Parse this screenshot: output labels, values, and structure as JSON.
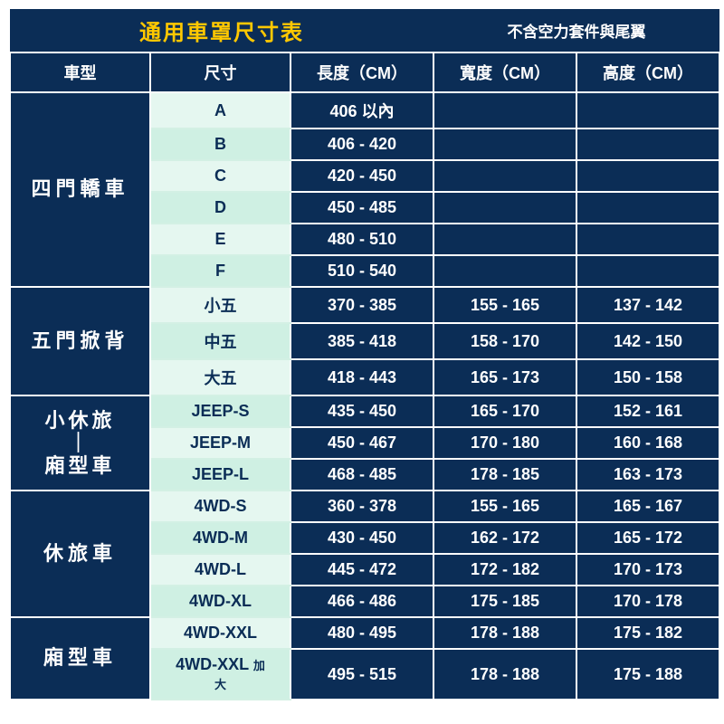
{
  "title": "通用車罩尺寸表",
  "note": "不含空力套件與尾翼",
  "columns": [
    "車型",
    "尺寸",
    "長度（CM）",
    "寬度（CM）",
    "高度（CM）"
  ],
  "alt_colors": [
    "#e5f7f0",
    "#cff0e3"
  ],
  "groups": [
    {
      "category": "四門轎車",
      "rows": [
        {
          "size": "A",
          "len": "406 以內",
          "w": "",
          "h": ""
        },
        {
          "size": "B",
          "len": "406 - 420",
          "w": "",
          "h": ""
        },
        {
          "size": "C",
          "len": "420 - 450",
          "w": "",
          "h": ""
        },
        {
          "size": "D",
          "len": "450 - 485",
          "w": "",
          "h": ""
        },
        {
          "size": "E",
          "len": "480 - 510",
          "w": "",
          "h": ""
        },
        {
          "size": "F",
          "len": "510 - 540",
          "w": "",
          "h": ""
        }
      ]
    },
    {
      "category": "五門掀背",
      "rows": [
        {
          "size": "小五",
          "len": "370 - 385",
          "w": "155 - 165",
          "h": "137 - 142"
        },
        {
          "size": "中五",
          "len": "385 - 418",
          "w": "158 - 170",
          "h": "142 - 150"
        },
        {
          "size": "大五",
          "len": "418 - 443",
          "w": "165 - 173",
          "h": "150 - 158"
        }
      ]
    },
    {
      "category": "小休旅｜廂型車",
      "category_html": "<span class='stack'>小休旅</span><span class='stack'>｜</span><span class='stack'>廂型車</span>",
      "rows": [
        {
          "size": "JEEP-S",
          "len": "435 - 450",
          "w": "165 - 170",
          "h": "152 - 161"
        },
        {
          "size": "JEEP-M",
          "len": "450 - 467",
          "w": "170 - 180",
          "h": "160 - 168"
        },
        {
          "size": "JEEP-L",
          "len": "468 - 485",
          "w": "178 - 185",
          "h": "163 - 173"
        }
      ]
    },
    {
      "category": "休旅車",
      "rows": [
        {
          "size": "4WD-S",
          "len": "360 - 378",
          "w": "155 - 165",
          "h": "165 - 167"
        },
        {
          "size": "4WD-M",
          "len": "430 - 450",
          "w": "162 - 172",
          "h": "165 - 172"
        },
        {
          "size": "4WD-L",
          "len": "445 - 472",
          "w": "172 - 182",
          "h": "170 - 173"
        },
        {
          "size": "4WD-XL",
          "len": "466 - 486",
          "w": "175 - 185",
          "h": "170 - 178"
        }
      ]
    },
    {
      "category": "廂型車",
      "rows": [
        {
          "size": "4WD-XXL",
          "len": "480 - 495",
          "w": "178 - 188",
          "h": "175 - 182"
        },
        {
          "size": "4WD-XXL 加大",
          "size_html": "4WD-XXL <span class='sm'>加<br>大</span>",
          "len": "495 - 515",
          "w": "178 - 188",
          "h": "175 - 188"
        }
      ]
    }
  ]
}
